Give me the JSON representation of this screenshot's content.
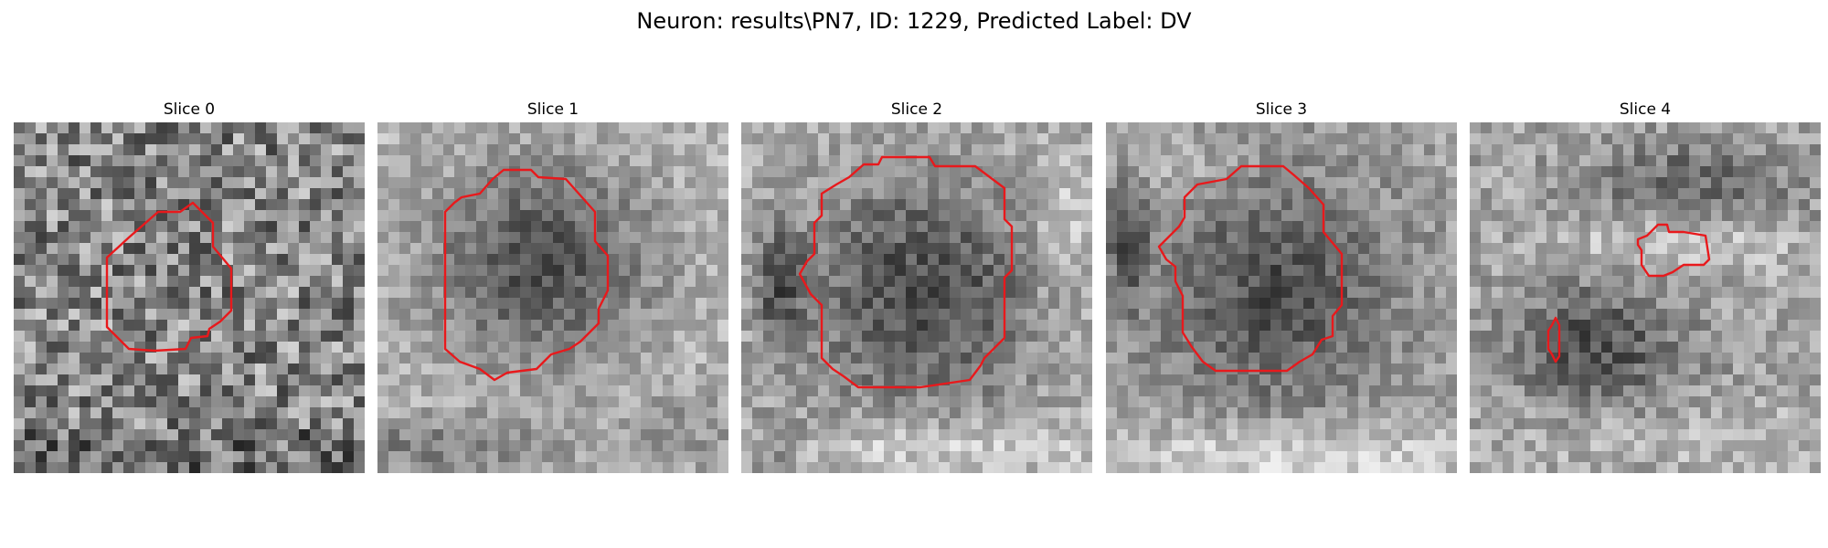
{
  "figure": {
    "title": "Neuron: results\\PN7, ID: 1229, Predicted Label: DV"
  },
  "colors": {
    "contour": "#e8191c",
    "background": "#ffffff"
  },
  "panels": [
    {
      "title": "Slice 0",
      "seed": 101,
      "texture": "noise"
    },
    {
      "title": "Slice 1",
      "seed": 202,
      "texture": "cell-bright-surround"
    },
    {
      "title": "Slice 2",
      "seed": 303,
      "texture": "cell-dark-left"
    },
    {
      "title": "Slice 3",
      "seed": 404,
      "texture": "cell-bright-bottom"
    },
    {
      "title": "Slice 4",
      "seed": 505,
      "texture": "dim-cell-two-contours"
    }
  ]
}
